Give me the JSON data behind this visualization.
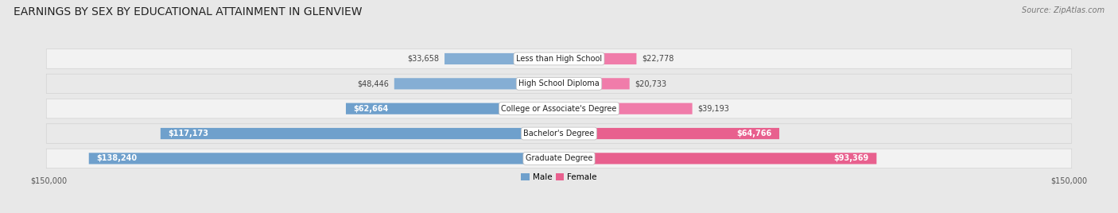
{
  "title": "EARNINGS BY SEX BY EDUCATIONAL ATTAINMENT IN GLENVIEW",
  "source": "Source: ZipAtlas.com",
  "categories": [
    "Less than High School",
    "High School Diploma",
    "College or Associate's Degree",
    "Bachelor's Degree",
    "Graduate Degree"
  ],
  "male_values": [
    33658,
    48446,
    62664,
    117173,
    138240
  ],
  "female_values": [
    22778,
    20733,
    39193,
    64766,
    93369
  ],
  "male_color": "#85aed4",
  "female_color": "#f07caa",
  "male_color_large": "#6fa0cc",
  "female_color_large": "#e8608e",
  "max_value": 150000,
  "bg_color": "#e8e8e8",
  "row_bg_even": "#f5f5f5",
  "row_bg_odd": "#ebebeb",
  "title_fontsize": 10,
  "label_fontsize": 7,
  "tick_fontsize": 7,
  "legend_male": "Male",
  "legend_female": "Female",
  "value_threshold": 60000
}
